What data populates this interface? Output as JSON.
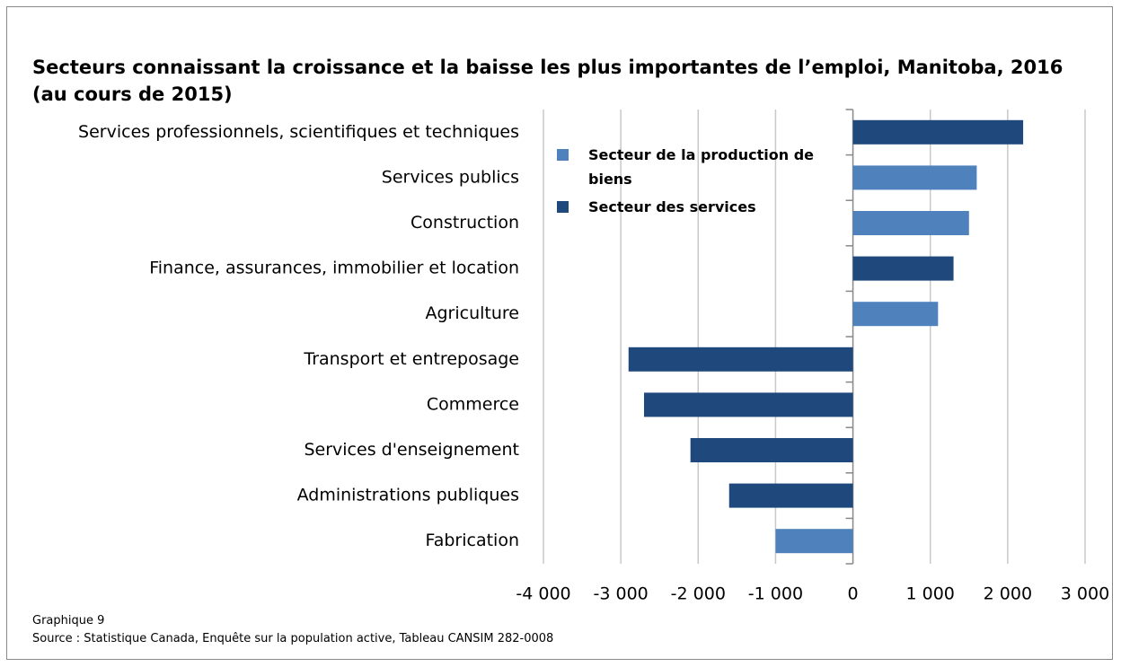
{
  "chart_data": {
    "type": "barh",
    "title": "Secteurs connaissant la croissance et la baisse les plus importantes de l’emploi, Manitoba, 2016 (au cours de 2015)",
    "categories": [
      "Services professionnels, scientifiques et techniques",
      "Services publics",
      "Construction",
      "Finance, assurances, immobilier et location",
      "Agriculture",
      "Transport et entreposage",
      "Commerce",
      "Services d'enseignement",
      "Administrations publiques",
      "Fabrication"
    ],
    "series": [
      {
        "name": "Secteur de la production de biens",
        "color": "#4f81bd",
        "values": [
          null,
          1600,
          1500,
          null,
          1100,
          null,
          null,
          null,
          null,
          -1000
        ]
      },
      {
        "name": "Secteur des services",
        "color": "#1f497d",
        "values": [
          2200,
          null,
          null,
          1300,
          null,
          -2900,
          -2700,
          -2100,
          -1600,
          null
        ]
      }
    ],
    "xlim": [
      -4000,
      3000
    ],
    "xticks": [
      {
        "value": -4000,
        "label": "-4 000"
      },
      {
        "value": -3000,
        "label": "-3 000"
      },
      {
        "value": -2000,
        "label": "-2 000"
      },
      {
        "value": -1000,
        "label": "-1 000"
      },
      0,
      {
        "value": 1000,
        "label": "1 000"
      },
      {
        "value": 2000,
        "label": "2 000"
      },
      {
        "value": 3000,
        "label": "3 000"
      }
    ],
    "grid": true,
    "legend": "upper-left",
    "figure_label": "Graphique 9",
    "source": "Source : Statistique Canada, Enquête sur la population active, Tableau CANSIM 282-0008"
  }
}
